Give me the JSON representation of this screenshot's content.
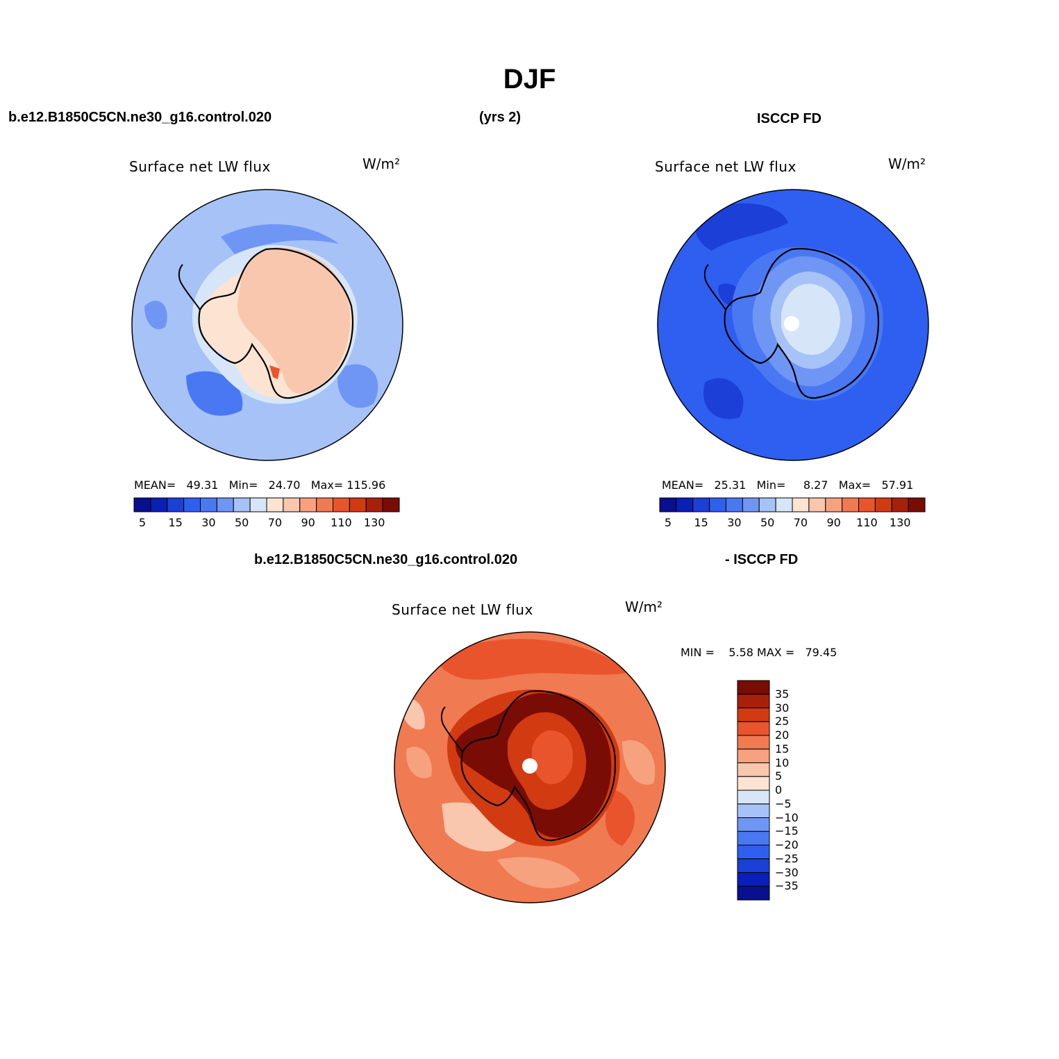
{
  "title": "DJF",
  "header": {
    "case_name": "b.e12.B1850C5CN.ne30_g16.control.020",
    "years": "(yrs 2)",
    "obs_name": "ISCCP FD",
    "diff_case": "b.e12.B1850C5CN.ne30_g16.control.020",
    "diff_obs": "- ISCCP FD"
  },
  "panels": {
    "model": {
      "title": "Surface net LW flux",
      "unit": "W/m²",
      "mean_label": "MEAN=",
      "mean": "49.31",
      "min_label": "Min=",
      "min": "24.70",
      "max_label": "Max=",
      "max": "115.96"
    },
    "obs": {
      "title": "Surface net LW flux",
      "unit": "W/m²",
      "mean_label": "MEAN=",
      "mean": "25.31",
      "min_label": "Min=",
      "min": "8.27",
      "max_label": "Max=",
      "max": "57.91"
    },
    "diff": {
      "title": "Surface net LW flux",
      "unit": "W/m²",
      "minmax_text": "MIN =    5.58 MAX =   79.45"
    }
  },
  "abs_colorbar": {
    "colors": [
      "#08108f",
      "#0a1fb8",
      "#1c3fd8",
      "#2f5ff0",
      "#4a78f2",
      "#6f96f4",
      "#a6c2f7",
      "#d6e6f8",
      "#fde3d2",
      "#f9c6ae",
      "#f6a27e",
      "#f07a52",
      "#e9542d",
      "#d23a12",
      "#a8200a",
      "#7a0c06"
    ],
    "ticks": [
      "5",
      "15",
      "30",
      "50",
      "70",
      "90",
      "110",
      "130"
    ]
  },
  "diff_colorbar": {
    "colors": [
      "#7a0c06",
      "#a8200a",
      "#d23a12",
      "#e9542d",
      "#f07a52",
      "#f6a27e",
      "#f9c6ae",
      "#fde3d2",
      "#d6e6f8",
      "#a6c2f7",
      "#6f96f4",
      "#4a78f2",
      "#2f5ff0",
      "#1c3fd8",
      "#0a1fb8",
      "#08108f"
    ],
    "ticks": [
      "35",
      "30",
      "25",
      "20",
      "15",
      "10",
      "5",
      "0",
      "−5",
      "−10",
      "−15",
      "−20",
      "−25",
      "−30",
      "−35"
    ]
  },
  "map_colors": {
    "model_ocean": "#a6c2f7",
    "model_ocean_dark": "#6f96f4",
    "model_ocean_darker": "#4a78f2",
    "model_land": "#f9c6ae",
    "model_land_light": "#fde3d2",
    "obs_ocean": "#2f5ff0",
    "obs_ocean_dark": "#1c3fd8",
    "obs_land": "#6f96f4",
    "obs_land_light": "#a6c2f7",
    "obs_center": "#d6e6f8",
    "diff_ocean": "#f07a52",
    "diff_ocean_dark": "#e9542d",
    "diff_ocean_light": "#f6a27e",
    "diff_ocean_pale": "#f9c6ae",
    "diff_land": "#d23a12",
    "diff_land_dark": "#7a0c06"
  }
}
